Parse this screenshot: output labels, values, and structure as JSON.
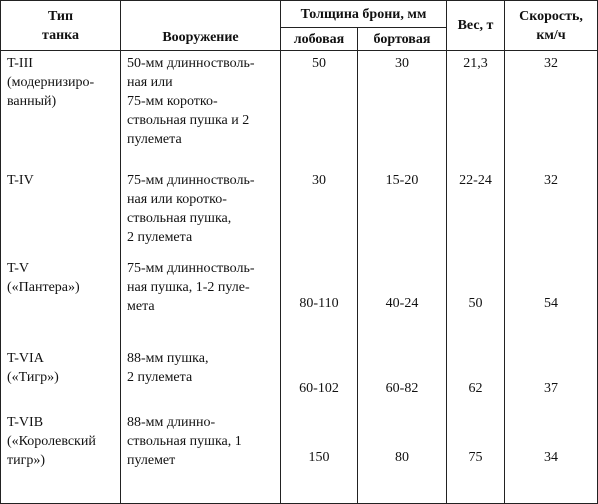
{
  "table": {
    "header": {
      "type": [
        "Тип",
        "танка"
      ],
      "armament": "Вооружение",
      "armor": "Толщина брони, мм",
      "front": "лобовая",
      "side": "бортовая",
      "weight": "Вес, т",
      "speed": [
        "Скорость,",
        "км/ч"
      ]
    },
    "rows": [
      {
        "type": [
          "T-III",
          "(модернизиро-",
          "ванный)"
        ],
        "armament": [
          "50-мм длинностволь-",
          "ная или",
          "75-мм коротко-",
          "ствольная пушка и 2",
          "пулемета"
        ],
        "front": "50",
        "side": "30",
        "weight": "21,3",
        "speed": "32"
      },
      {
        "type": [
          "T-IV"
        ],
        "armament": [
          "75-мм длинностволь-",
          "ная или коротко-",
          "ствольная пушка,",
          "2 пулемета"
        ],
        "front": "30",
        "side": "15-20",
        "weight": "22-24",
        "speed": "32"
      },
      {
        "type": [
          "T-V",
          "(«Пантера»)"
        ],
        "armament": [
          "75-мм длинностволь-",
          "ная пушка, 1-2 пуле-",
          "мета"
        ],
        "front": "80-110",
        "side": "40-24",
        "weight": "50",
        "speed": "54"
      },
      {
        "type": [
          "T-VIA",
          "(«Тигр»)"
        ],
        "armament": [
          "88-мм пушка,",
          "2 пулемета"
        ],
        "front": "60-102",
        "side": "60-82",
        "weight": "62",
        "speed": "37"
      },
      {
        "type": [
          "T-VIB",
          "(«Королевский",
          "тигр»)"
        ],
        "armament": [
          "88-мм длинно-",
          "ствольная пушка, 1",
          "пулемет"
        ],
        "front": "150",
        "side": "80",
        "weight": "75",
        "speed": "34"
      }
    ]
  }
}
